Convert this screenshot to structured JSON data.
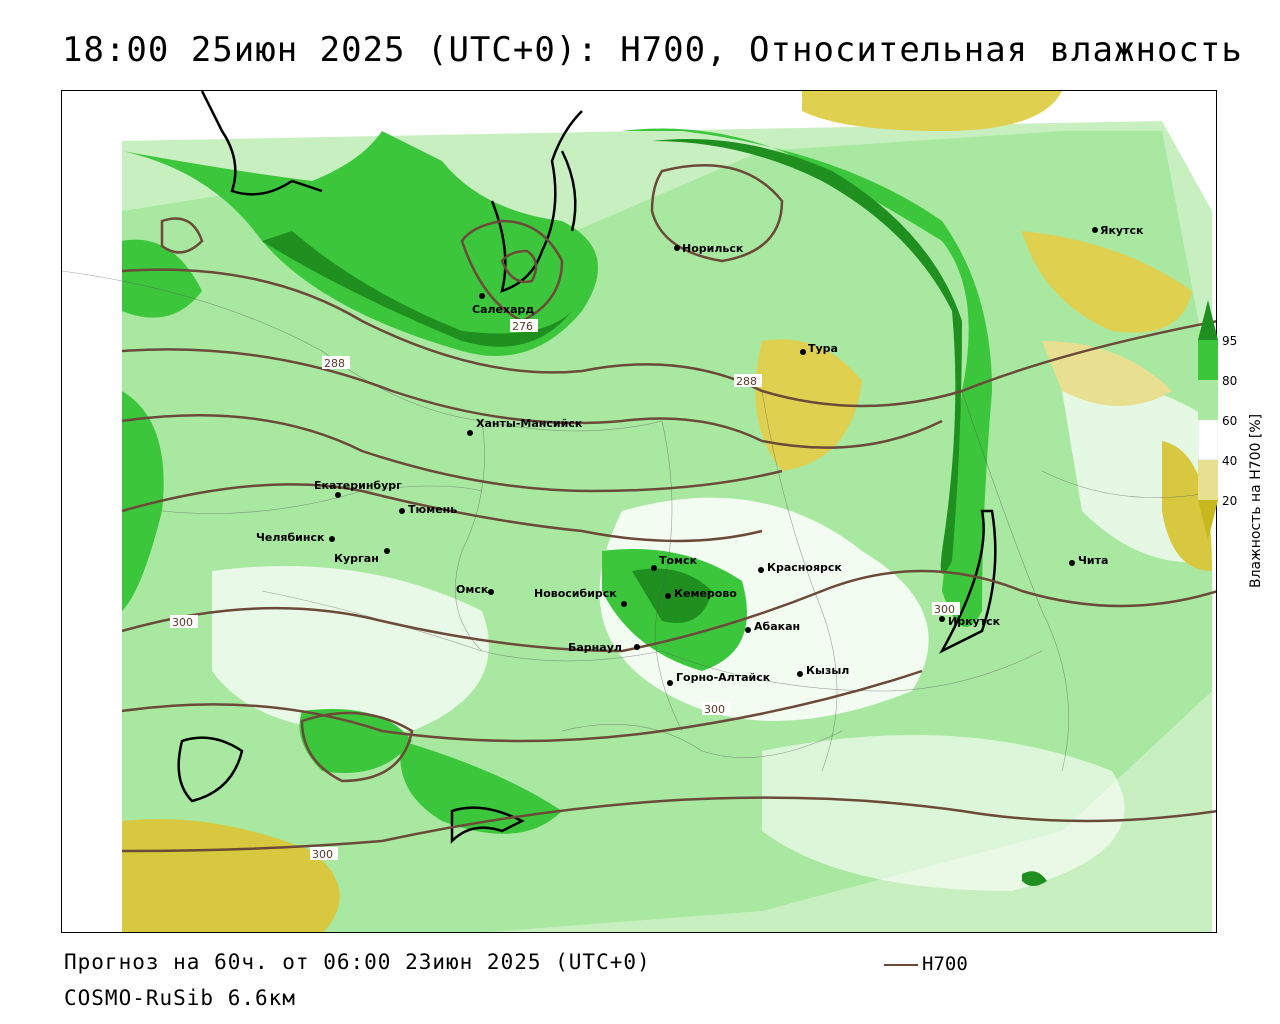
{
  "title": "18:00 25июн 2025 (UTC+0): H700, Относительная влажность",
  "footer": {
    "forecast": "Прогноз на 60ч. от 06:00 23июн 2025 (UTC+0)",
    "model": "COSMO-RuSib 6.6км",
    "legend_h700": "H700"
  },
  "colorbar": {
    "title": "Влажность на H700 [%]",
    "ticks": [
      "95",
      "80",
      "60",
      "40",
      "20"
    ],
    "colors": {
      "c95": "#1f8f1f",
      "c80": "#3cc63c",
      "c60": "#a8e8a0",
      "c40": "#ffffff",
      "c20": "#e8e090",
      "c0": "#c8b820"
    }
  },
  "contour_labels": [
    "276",
    "288",
    "288",
    "300",
    "300",
    "300",
    "300"
  ],
  "cities": [
    {
      "name": "Норильск"
    },
    {
      "name": "Якутск"
    },
    {
      "name": "Салехард"
    },
    {
      "name": "Тура"
    },
    {
      "name": "Ханты-Мансийск"
    },
    {
      "name": "Екатеринбург"
    },
    {
      "name": "Тюмень"
    },
    {
      "name": "Челябинск"
    },
    {
      "name": "Курган"
    },
    {
      "name": "Омск"
    },
    {
      "name": "Новосибирск"
    },
    {
      "name": "Томск"
    },
    {
      "name": "Кемерово"
    },
    {
      "name": "Красноярск"
    },
    {
      "name": "Абакан"
    },
    {
      "name": "Барнаул"
    },
    {
      "name": "Горно-Алтайск"
    },
    {
      "name": "Кызыл"
    },
    {
      "name": "Иркутск"
    },
    {
      "name": "Чита"
    }
  ]
}
